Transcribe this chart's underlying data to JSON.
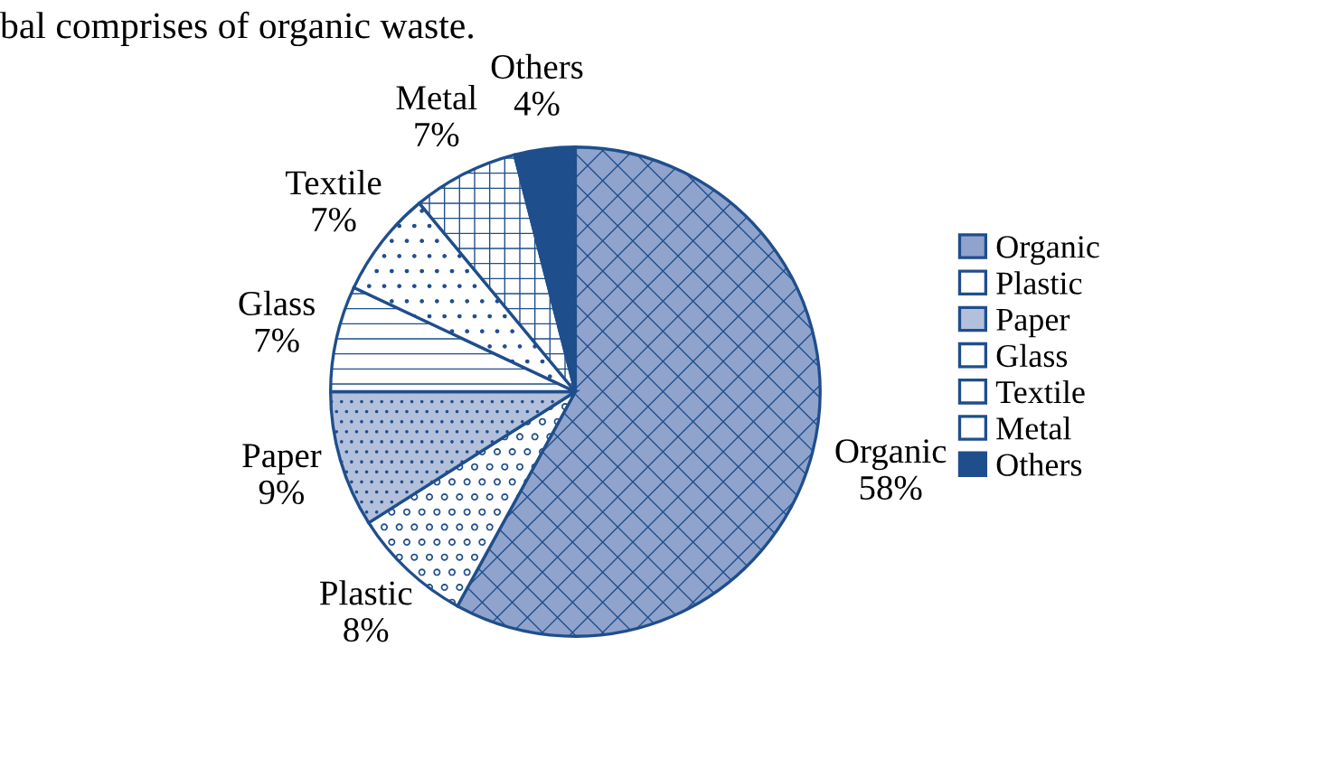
{
  "chart_data": {
    "type": "pie",
    "categories": [
      "Organic",
      "Plastic",
      "Paper",
      "Glass",
      "Textile",
      "Metal",
      "Others"
    ],
    "values": [
      58,
      8,
      9,
      7,
      7,
      7,
      4
    ],
    "value_labels": [
      "58%",
      "8%",
      "9%",
      "7%",
      "7%",
      "7%",
      "4%"
    ],
    "colors": [
      "#8fa3cc",
      "#ffffff",
      "#b3c0dc",
      "#ffffff",
      "#ffffff",
      "#ffffff",
      "#1f4e8c"
    ],
    "legend": "right",
    "annotations": [
      "bal comprises of organic waste."
    ]
  }
}
